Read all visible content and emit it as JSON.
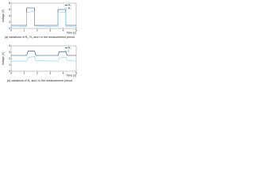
{
  "chart_data": [
    {
      "type": "line",
      "caption": "(a) variations of R₁, R₂ and I in the measurement period",
      "x_label": "Time (s)",
      "y_label": "Voltage (V)",
      "x": [
        0,
        1.2,
        1.2,
        1.8,
        1.8,
        3.6,
        3.6,
        4.2,
        4.2,
        5
      ],
      "series": [
        {
          "name": "R₁",
          "color": "#1f3d7a",
          "values": [
            1,
            1,
            6.5,
            6.5,
            1,
            1,
            6,
            6,
            1,
            1
          ]
        },
        {
          "name": "R₂",
          "color": "#7fd3f0",
          "values": [
            0.5,
            0.6,
            5,
            5.5,
            0.8,
            0.6,
            5,
            5.2,
            0.7,
            0.5
          ]
        }
      ],
      "xlim": [
        0,
        5
      ],
      "xticks": [
        0,
        1,
        2,
        3,
        4,
        5
      ],
      "ylim": [
        0,
        8
      ],
      "yticks": [
        0,
        2,
        4,
        6,
        8
      ],
      "legend": "upper right",
      "grid": false
    },
    {
      "type": "line",
      "caption": "(b) variations of R₁ and I in the measurement period",
      "x_label": "Time (s)",
      "y_label": "Voltage (V)",
      "x": [
        0,
        1.2,
        1.3,
        1.8,
        1.9,
        3.6,
        3.7,
        4.2,
        4.3,
        5
      ],
      "series": [
        {
          "name": "R₁",
          "color": "#1f3d7a",
          "values": [
            2.5,
            2.5,
            3.2,
            3.2,
            2.5,
            2.5,
            3.1,
            3.1,
            2.5,
            2.5
          ]
        },
        {
          "name": "I",
          "color": "#7fd3f0",
          "values": [
            1.6,
            1.6,
            2.2,
            2.3,
            1.7,
            1.6,
            2.1,
            2.2,
            1.7,
            1.6
          ]
        }
      ],
      "xlim": [
        0,
        5
      ],
      "xticks": [
        0,
        1,
        2,
        3,
        4,
        5
      ],
      "ylim": [
        0,
        4
      ],
      "yticks": [
        0,
        1,
        2,
        3,
        4
      ],
      "legend": "upper right",
      "grid": false
    }
  ]
}
